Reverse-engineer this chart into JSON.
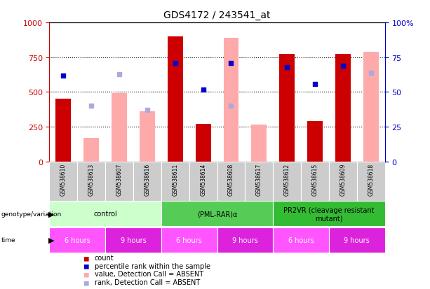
{
  "title": "GDS4172 / 243541_at",
  "samples": [
    "GSM538610",
    "GSM538613",
    "GSM538607",
    "GSM538616",
    "GSM538611",
    "GSM538614",
    "GSM538608",
    "GSM538617",
    "GSM538612",
    "GSM538615",
    "GSM538609",
    "GSM538618"
  ],
  "red_bars": [
    450,
    0,
    0,
    0,
    900,
    270,
    0,
    0,
    775,
    290,
    775,
    0
  ],
  "pink_bars": [
    0,
    170,
    490,
    360,
    0,
    0,
    890,
    265,
    0,
    0,
    0,
    790
  ],
  "blue_squares": [
    620,
    0,
    0,
    0,
    710,
    520,
    710,
    0,
    680,
    560,
    690,
    0
  ],
  "lavender_squares": [
    0,
    400,
    630,
    370,
    0,
    0,
    400,
    0,
    0,
    0,
    0,
    640
  ],
  "ylim_left": [
    0,
    1000
  ],
  "ylim_right": [
    0,
    100
  ],
  "yticks_left": [
    0,
    250,
    500,
    750,
    1000
  ],
  "yticks_right": [
    0,
    25,
    50,
    75,
    100
  ],
  "genotype_groups": [
    {
      "label": "control",
      "start": 0,
      "end": 4,
      "color": "#ccffcc"
    },
    {
      "label": "(PML-RAR)α",
      "start": 4,
      "end": 8,
      "color": "#55cc55"
    },
    {
      "label": "PR2VR (cleavage resistant\nmutant)",
      "start": 8,
      "end": 12,
      "color": "#33bb33"
    }
  ],
  "time_groups": [
    {
      "label": "6 hours",
      "start": 0,
      "end": 2,
      "color": "#ff55ff"
    },
    {
      "label": "9 hours",
      "start": 2,
      "end": 4,
      "color": "#dd22dd"
    },
    {
      "label": "6 hours",
      "start": 4,
      "end": 6,
      "color": "#ff55ff"
    },
    {
      "label": "9 hours",
      "start": 6,
      "end": 8,
      "color": "#dd22dd"
    },
    {
      "label": "6 hours",
      "start": 8,
      "end": 10,
      "color": "#ff55ff"
    },
    {
      "label": "9 hours",
      "start": 10,
      "end": 12,
      "color": "#dd22dd"
    }
  ],
  "red_color": "#cc0000",
  "pink_color": "#ffaaaa",
  "blue_color": "#0000cc",
  "lavender_color": "#aaaadd",
  "title_fontsize": 10,
  "axis_color_left": "#cc0000",
  "axis_color_right": "#0000cc",
  "sample_bg_color": "#cccccc",
  "legend_items": [
    {
      "color": "#cc0000",
      "label": "count"
    },
    {
      "color": "#0000cc",
      "label": "percentile rank within the sample"
    },
    {
      "color": "#ffaaaa",
      "label": "value, Detection Call = ABSENT"
    },
    {
      "color": "#aaaadd",
      "label": "rank, Detection Call = ABSENT"
    }
  ]
}
